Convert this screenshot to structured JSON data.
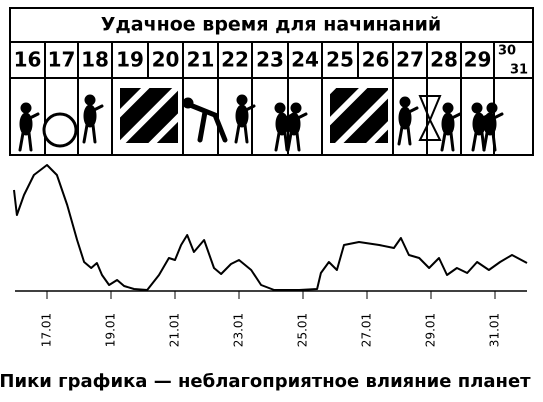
{
  "header": {
    "title": "Удачное время для начинаний",
    "days": [
      "16",
      "17",
      "18",
      "19",
      "20",
      "21",
      "22",
      "23",
      "24",
      "25",
      "26",
      "27",
      "28",
      "29",
      "30",
      "31"
    ]
  },
  "chart_data": {
    "type": "line",
    "x": [
      15.97,
      16.06,
      16.28,
      16.59,
      17.0,
      17.31,
      17.63,
      17.94,
      18.16,
      18.38,
      18.56,
      18.72,
      18.94,
      19.19,
      19.41,
      19.72,
      20.13,
      20.5,
      20.81,
      21.0,
      21.19,
      21.38,
      21.59,
      21.91,
      22.22,
      22.44,
      22.75,
      23.0,
      23.38,
      23.69,
      24.1,
      24.88,
      25.44,
      25.56,
      25.81,
      26.06,
      26.28,
      26.75,
      27.38,
      27.84,
      28.06,
      28.31,
      28.63,
      28.94,
      29.25,
      29.5,
      29.81,
      30.13,
      30.44,
      30.81,
      31.16,
      31.53,
      32.0
    ],
    "series": [
      {
        "color": "#000000",
        "values": [
          101,
          76,
          96,
          116,
          126,
          116,
          86,
          51,
          29,
          23,
          28,
          16,
          6,
          11,
          5,
          2,
          1,
          16,
          33,
          31,
          46,
          56,
          39,
          51,
          23,
          17,
          27,
          31,
          21,
          6,
          1,
          1,
          2,
          18,
          29,
          21,
          46,
          49,
          46,
          43,
          53,
          36,
          33,
          23,
          33,
          16,
          23,
          18,
          29,
          21,
          29,
          36,
          28
        ]
      }
    ],
    "xlim": [
      16,
      32
    ],
    "ylim": [
      0,
      130
    ],
    "xticks": [
      {
        "value": 17,
        "label": "17.01"
      },
      {
        "value": 19,
        "label": "19.01"
      },
      {
        "value": 21,
        "label": "21.01"
      },
      {
        "value": 23,
        "label": "23.01"
      },
      {
        "value": 25,
        "label": "25.01"
      },
      {
        "value": 27,
        "label": "27.01"
      },
      {
        "value": 29,
        "label": "29.01"
      },
      {
        "value": 31,
        "label": "31.01"
      }
    ],
    "caption": "Пики графика — неблагоприятное влияние планет"
  }
}
